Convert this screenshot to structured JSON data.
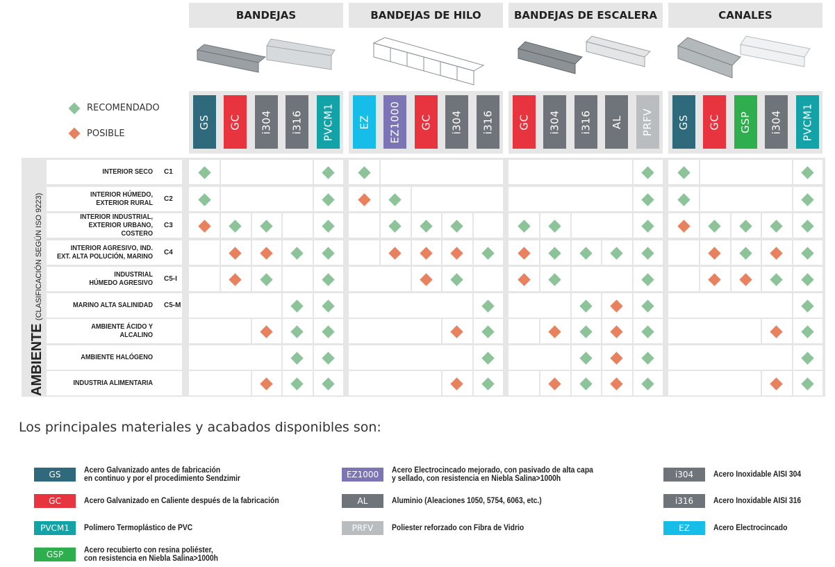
{
  "colors": {
    "recommended": "#8cc398",
    "possible": "#e8825e",
    "GS": "#2f6a7c",
    "GC": "#e8343f",
    "i304": "#6e7479",
    "i316": "#6e7479",
    "PVCM1": "#13a2a6",
    "EZ": "#16bde8",
    "EZ1000": "#7b75b6",
    "AL": "#6e7479",
    "PRFV": "#b9bdbf",
    "GSP": "#2fae4d"
  },
  "legend": {
    "recommended": "RECOMENDADO",
    "possible": "POSIBLE"
  },
  "categories": [
    {
      "title": "BANDEJAS",
      "materials": [
        "GS",
        "GC",
        "i304",
        "i316",
        "PVCM1"
      ]
    },
    {
      "title": "BANDEJAS DE HILO",
      "materials": [
        "EZ",
        "EZ1000",
        "GC",
        "i304",
        "i316"
      ]
    },
    {
      "title": "BANDEJAS DE ESCALERA",
      "materials": [
        "GC",
        "i304",
        "i316",
        "AL",
        "PRFV"
      ]
    },
    {
      "title": "CANALES",
      "materials": [
        "GS",
        "GC",
        "GSP",
        "i304",
        "PVCM1"
      ]
    }
  ],
  "ambient": {
    "title": "AMBIENTE",
    "subtitle": "(CLASIFICACIÓN SEGÚN ISO 9223)"
  },
  "rows": [
    {
      "label": "INTERIOR SECO",
      "code": "C1",
      "values": [
        [
          "R",
          "",
          "",
          "",
          "R"
        ],
        [
          "R",
          "",
          "",
          "",
          ""
        ],
        [
          "",
          "",
          "",
          "",
          "R"
        ],
        [
          "R",
          "",
          "",
          "",
          "R"
        ]
      ]
    },
    {
      "label": "INTERIOR HÚMEDO,\nEXTERIOR RURAL",
      "code": "C2",
      "values": [
        [
          "R",
          "",
          "",
          "",
          "R"
        ],
        [
          "P",
          "R",
          "",
          "",
          ""
        ],
        [
          "",
          "",
          "",
          "",
          "R"
        ],
        [
          "R",
          "",
          "",
          "",
          "R"
        ]
      ]
    },
    {
      "label": "INTERIOR INDUSTRIAL,\nEXTERIOR URBANO, COSTERO",
      "code": "C3",
      "values": [
        [
          "P",
          "R",
          "R",
          "",
          "R"
        ],
        [
          "",
          "R",
          "R",
          "R",
          ""
        ],
        [
          "R",
          "R",
          "",
          "",
          "R"
        ],
        [
          "P",
          "R",
          "R",
          "R",
          "R"
        ]
      ]
    },
    {
      "label": "INTERIOR AGRESIVO, IND.\nEXT. ALTA POLUCIÓN, MARINO",
      "code": "C4",
      "values": [
        [
          "",
          "P",
          "P",
          "R",
          "R"
        ],
        [
          "",
          "P",
          "P",
          "P",
          "R"
        ],
        [
          "P",
          "R",
          "R",
          "R",
          "R"
        ],
        [
          "",
          "P",
          "R",
          "P",
          "R"
        ]
      ]
    },
    {
      "label": "INDUSTRIAL\nHÚMEDO AGRESIVO",
      "code": "C5-I",
      "values": [
        [
          "",
          "P",
          "R",
          "",
          "R"
        ],
        [
          "",
          "",
          "P",
          "R",
          ""
        ],
        [
          "P",
          "R",
          "",
          "",
          "R"
        ],
        [
          "",
          "P",
          "P",
          "R",
          "R"
        ]
      ]
    },
    {
      "label": "MARINO ALTA SALINIDAD",
      "code": "C5-M",
      "values": [
        [
          "",
          "",
          "",
          "R",
          "R"
        ],
        [
          "",
          "",
          "",
          "",
          "R"
        ],
        [
          "",
          "",
          "R",
          "P",
          "R"
        ],
        [
          "",
          "",
          "",
          "",
          "R"
        ]
      ]
    },
    {
      "label": "AMBIENTE ÁCIDO Y ALCALINO",
      "code": "",
      "values": [
        [
          "",
          "",
          "P",
          "R",
          "R"
        ],
        [
          "",
          "",
          "",
          "P",
          "R"
        ],
        [
          "",
          "P",
          "R",
          "P",
          "R"
        ],
        [
          "",
          "",
          "",
          "P",
          "R"
        ]
      ]
    },
    {
      "label": "AMBIENTE HALÓGENO",
      "code": "",
      "values": [
        [
          "",
          "",
          "",
          "R",
          "R"
        ],
        [
          "",
          "",
          "",
          "",
          "R"
        ],
        [
          "",
          "",
          "R",
          "P",
          "R"
        ],
        [
          "",
          "",
          "",
          "",
          "R"
        ]
      ]
    },
    {
      "label": "INDUSTRIA ALIMENTARIA",
      "code": "",
      "values": [
        [
          "",
          "",
          "P",
          "R",
          "R"
        ],
        [
          "",
          "",
          "",
          "P",
          "R"
        ],
        [
          "",
          "P",
          "R",
          "P",
          "R"
        ],
        [
          "",
          "",
          "",
          "P",
          "R"
        ]
      ]
    }
  ],
  "materials_heading": "Los principales materiales y acabados disponibles son:",
  "materials_list": [
    {
      "code": "GS",
      "text": "Acero Galvanizado antes de fabricación\nen continuo y por el procedimiento Sendzimir"
    },
    {
      "code": "GC",
      "text": "Acero Galvanizado en Caliente después de la fabricación"
    },
    {
      "code": "PVCM1",
      "text": "Polímero Termoplástico de PVC"
    },
    {
      "code": "GSP",
      "text": "Acero recubierto con resina poliéster,\ncon resistencia en Niebla Salina>1000h"
    },
    {
      "code": "EZ1000",
      "text": "Acero Electrocincado mejorado, con pasivado de alta capa\ny sellado, con resistencia en Niebla Salina>1000h"
    },
    {
      "code": "AL",
      "text": "Aluminio (Aleaciones 1050, 5754, 6063, etc.)"
    },
    {
      "code": "PRFV",
      "text": "Poliester reforzado con Fibra de Vidrio"
    },
    {
      "code": "i304",
      "text": "Acero Inoxidable AISI 304"
    },
    {
      "code": "i316",
      "text": "Acero Inoxidable AISI 316"
    },
    {
      "code": "EZ",
      "text": "Acero Electrocincado"
    }
  ]
}
